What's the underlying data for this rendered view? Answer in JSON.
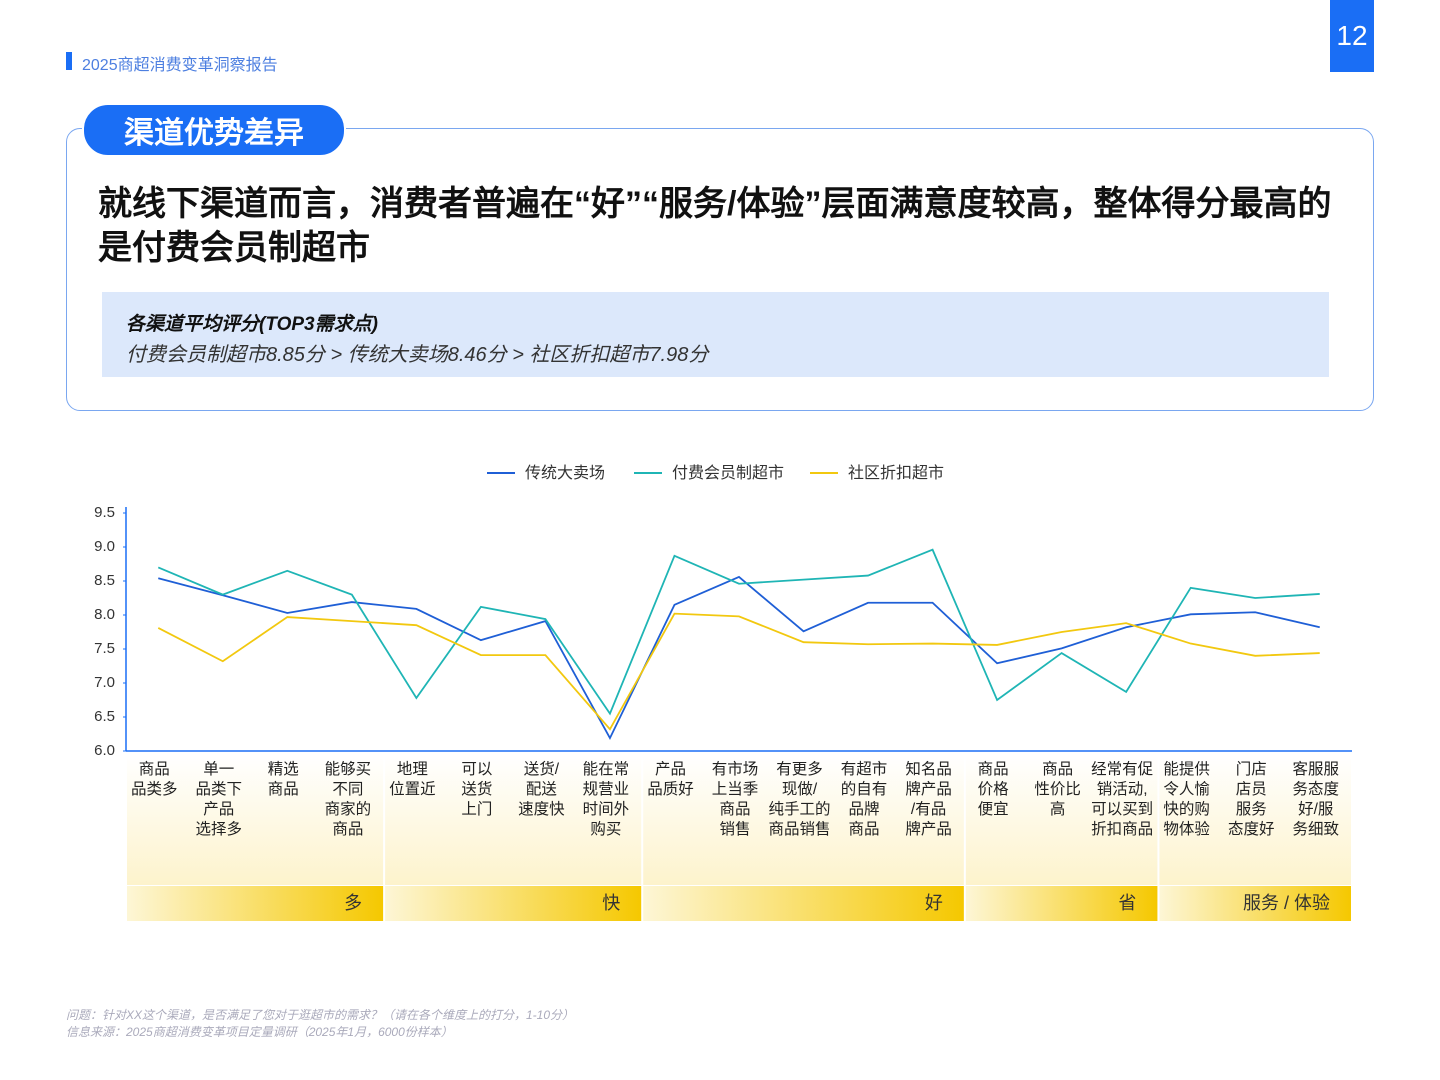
{
  "header": {
    "report": "2025商超消费变革洞察报告",
    "page": "12",
    "tag": "渠道优势差异",
    "headline": "就线下渠道而言，消费者普遍在“好”“服务/体验”层面满意度较高，整体得分最高的是付费会员制超市"
  },
  "summary": {
    "title": "各渠道平均评分(TOP3需求点)",
    "text": "付费会员制超市8.85分 > 传统大卖场8.46分 > 社区折扣超市7.98分"
  },
  "chart_data": {
    "type": "line",
    "categories": [
      "商品\n品类多",
      "单一\n品类下\n产品\n选择多",
      "精选\n商品",
      "能够买\n不同\n商家的\n商品",
      "地理\n位置近",
      "可以\n送货\n上门",
      "送货/\n配送\n速度快",
      "能在常\n规营业\n时间外\n购买",
      "产品\n品质好",
      "有市场\n上当季\n商品\n销售",
      "有更多\n现做/\n纯手工的\n商品销售",
      "有超市\n的自有\n品牌\n商品",
      "知名品\n牌产品\n/有品\n牌产品",
      "商品\n价格\n便宜",
      "商品\n性价比\n高",
      "经常有促\n销活动,\n可以买到\n折扣商品",
      "能提供\n令人愉\n快的购\n物体验",
      "门店\n店员\n服务\n态度好",
      "客服服\n务态度\n好/服\n务细致"
    ],
    "series": [
      {
        "name": "传统大卖场",
        "color": "#1f5fd6",
        "values": [
          8.54,
          8.29,
          8.03,
          8.19,
          8.09,
          7.63,
          7.91,
          6.19,
          8.15,
          8.56,
          7.76,
          8.18,
          8.18,
          7.29,
          7.51,
          7.82,
          8.01,
          8.04,
          7.82
        ]
      },
      {
        "name": "付费会员制超市",
        "color": "#1fb5b5",
        "values": [
          8.7,
          8.3,
          8.65,
          8.3,
          6.78,
          8.12,
          7.94,
          6.55,
          8.87,
          8.46,
          8.52,
          8.58,
          8.96,
          6.75,
          7.44,
          6.87,
          8.4,
          8.25,
          8.31
        ]
      },
      {
        "name": "社区折扣超市",
        "color": "#f2c80f",
        "values": [
          7.81,
          7.32,
          7.97,
          7.91,
          7.85,
          7.41,
          7.41,
          6.32,
          8.02,
          7.98,
          7.6,
          7.57,
          7.58,
          7.56,
          7.75,
          7.88,
          7.58,
          7.4,
          7.44
        ]
      }
    ],
    "groups": [
      "多",
      "快",
      "好",
      "省",
      "服务 / 体验"
    ],
    "ylim": [
      6,
      9.5
    ],
    "yticks": [
      {
        "value": 6,
        "label": "6.0"
      },
      6.5,
      {
        "value": 7,
        "label": "7.0"
      },
      7.5,
      {
        "value": 8,
        "label": "8.0"
      },
      8.5,
      {
        "value": 9,
        "label": "9.0"
      },
      9.5
    ],
    "legend": "top"
  },
  "footnotes": [
    "问题：针对XX这个渠道，是否满足了您对于逛超市的需求？（请在各个维度上的打分，1-10分）",
    "信息来源：2025商超消费变革项目定量调研（2025年1月，6000份样本）"
  ]
}
